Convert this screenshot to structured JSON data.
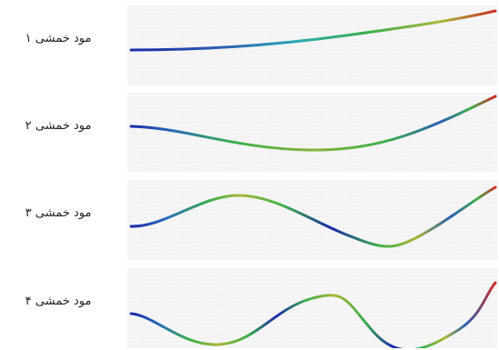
{
  "modes": [
    {
      "label": "مود خمشی ۱",
      "order": 1
    },
    {
      "label": "مود خمشی ۲",
      "order": 2
    },
    {
      "label": "مود خمشی ۳",
      "order": 3
    },
    {
      "label": "مود خمشی ۴",
      "order": 4
    }
  ],
  "colors": {
    "low": "#1a2aa8",
    "mid_low": "#2aa7b4",
    "mid": "#3cb04a",
    "mid_high": "#a8b838",
    "high": "#d0302a",
    "panel_bg": "#f1f1f1"
  }
}
